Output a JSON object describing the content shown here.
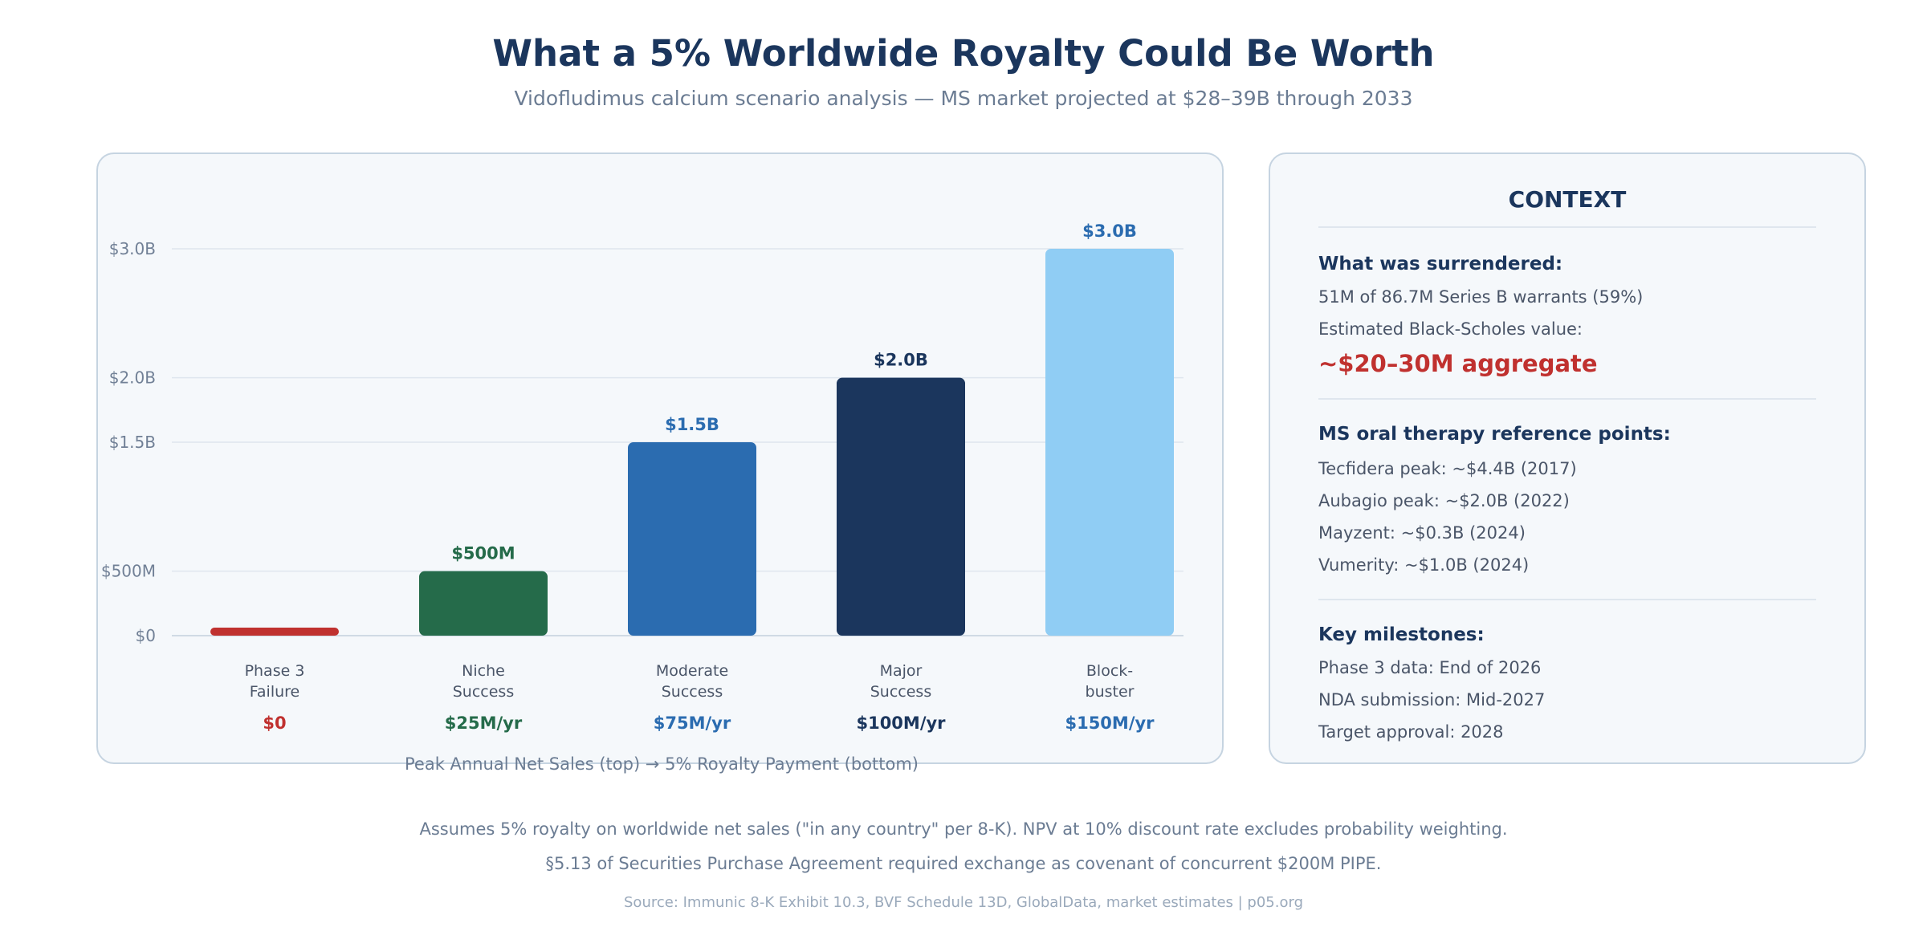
{
  "header": {
    "title": "What a 5% Worldwide Royalty Could Be Worth",
    "subtitle": "Vidofludimus calcium scenario analysis — MS market projected at $28–39B through 2033"
  },
  "chart_data": {
    "type": "bar",
    "categories": [
      [
        "Phase 3",
        "Failure"
      ],
      [
        "Niche",
        "Success"
      ],
      [
        "Moderate",
        "Success"
      ],
      [
        "Major",
        "Success"
      ],
      [
        "Block-",
        "buster"
      ]
    ],
    "values": [
      0,
      500,
      1500,
      2000,
      3000
    ],
    "value_unit": "$M peak annual net sales",
    "value_labels": [
      "",
      "$500M",
      "$1.5B",
      "$2.0B",
      "$3.0B"
    ],
    "royalty_labels": [
      "$0",
      "$25M/yr",
      "$75M/yr",
      "$100M/yr",
      "$150M/yr"
    ],
    "bar_colors": [
      "#c0312f",
      "#256b4a",
      "#2b6cb0",
      "#1b365d",
      "#90cdf4"
    ],
    "value_label_colors": [
      "#c0312f",
      "#256b4a",
      "#2b6cb0",
      "#1b365d",
      "#2b6cb0"
    ],
    "yticks": [
      {
        "value": 0,
        "label": "$0"
      },
      {
        "value": 500,
        "label": "$500M"
      },
      {
        "value": 1500,
        "label": "$1.5B"
      },
      {
        "value": 2000,
        "label": "$2.0B"
      },
      {
        "value": 3000,
        "label": "$3.0B"
      }
    ],
    "ylim": [
      0,
      3000
    ],
    "xlabel": "Peak Annual Net Sales (top) → 5% Royalty Payment (bottom)"
  },
  "context": {
    "title": "CONTEXT",
    "surrendered": {
      "heading": "What was surrendered:",
      "line1": "51M of 86.7M Series B warrants (59%)",
      "line2": "Estimated Black-Scholes value:",
      "value": "~$20–30M aggregate"
    },
    "reference": {
      "heading": "MS oral therapy reference points:",
      "items": [
        "Tecfidera peak: ~$4.4B (2017)",
        "Aubagio peak: ~$2.0B (2022)",
        "Mayzent: ~$0.3B (2024)",
        "Vumerity: ~$1.0B (2024)"
      ]
    },
    "milestones": {
      "heading": "Key milestones:",
      "items": [
        "Phase 3 data: End of 2026",
        "NDA submission: Mid-2027",
        "Target approval: 2028"
      ]
    }
  },
  "footer": {
    "note1": "Assumes 5% royalty on worldwide net sales (\"in any country\" per 8-K). NPV at 10% discount rate excludes probability weighting.",
    "note2": "§5.13 of Securities Purchase Agreement required exchange as covenant of concurrent $200M PIPE.",
    "source": "Source: Immunic 8-K Exhibit 10.3, BVF Schedule 13D, GlobalData, market estimates | p05.org"
  }
}
